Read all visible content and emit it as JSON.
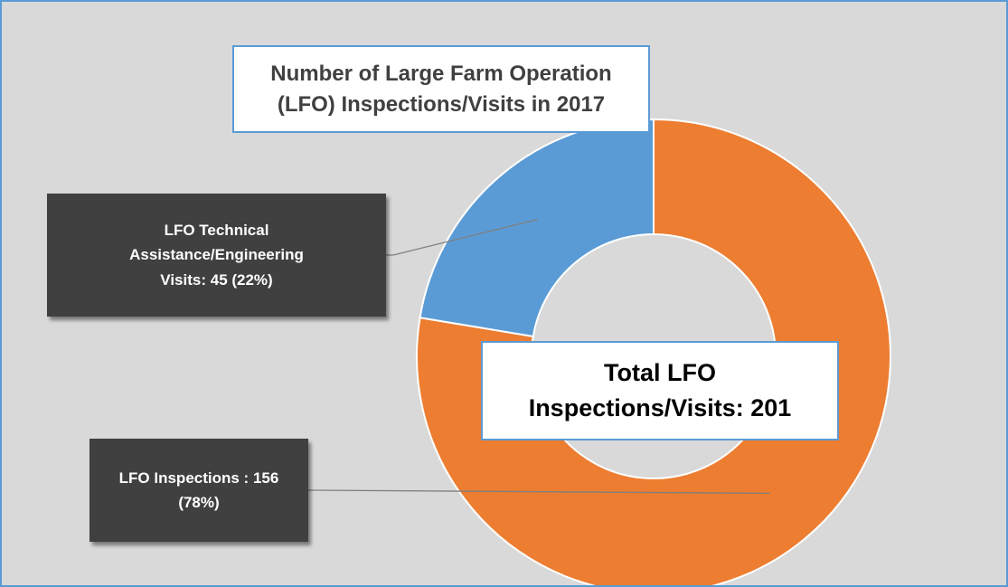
{
  "chart_data": {
    "type": "donut",
    "title": "Number of Large Farm Operation (LFO) Inspections/Visits in 2017",
    "categories": [
      "LFO Inspections :",
      "LFO Technical Assistance/Engineering Visits:"
    ],
    "values": [
      156,
      45
    ],
    "value_labels": [
      "156  (78%)",
      "45 (22%)"
    ],
    "colors": [
      "#ed7d31",
      "#5b9bd5"
    ],
    "annotation": "Total LFO Inspections/Visits: 201"
  }
}
